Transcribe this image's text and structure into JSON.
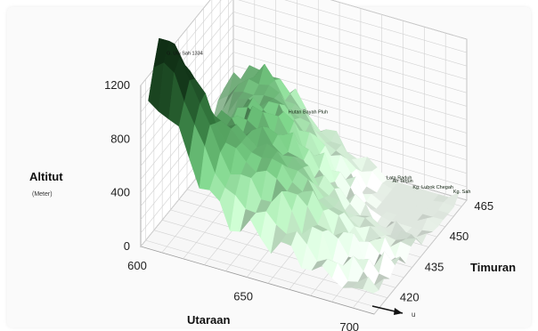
{
  "chart_data": {
    "type": "surface",
    "title": "",
    "xlabel": "Utaraan",
    "ylabel": "Timuran",
    "zlabel": "Altitut",
    "zunit": "(Meter)",
    "north_symbol": "u",
    "x_ticks": [
      "600",
      "650",
      "700"
    ],
    "y_ticks": [
      "420",
      "435",
      "450",
      "465"
    ],
    "z_ticks": [
      "0",
      "400",
      "800",
      "1200"
    ],
    "xlim": [
      600,
      710
    ],
    "ylim": [
      412,
      468
    ],
    "zlim": [
      0,
      1200
    ],
    "grid": true,
    "colormap": [
      "#0f2d14",
      "#2e6b37",
      "#6fbf7b",
      "#bfe6c3",
      "#f2fbf2"
    ],
    "annotations": [
      {
        "text": "G. Ulu Sah 1334",
        "x": 606,
        "y": 420,
        "z": 1334
      },
      {
        "text": "Hutan Bayah Pluh",
        "x": 640,
        "y": 450,
        "z": 600
      },
      {
        "text": "Lata Raduh",
        "x": 680,
        "y": 458,
        "z": 170
      },
      {
        "text": "Air Terjun",
        "x": 682,
        "y": 459,
        "z": 140
      },
      {
        "text": "Kg. Lubok Chegah",
        "x": 690,
        "y": 461,
        "z": 100
      },
      {
        "text": "Kg. Sah",
        "x": 706,
        "y": 465,
        "z": 80
      }
    ]
  }
}
